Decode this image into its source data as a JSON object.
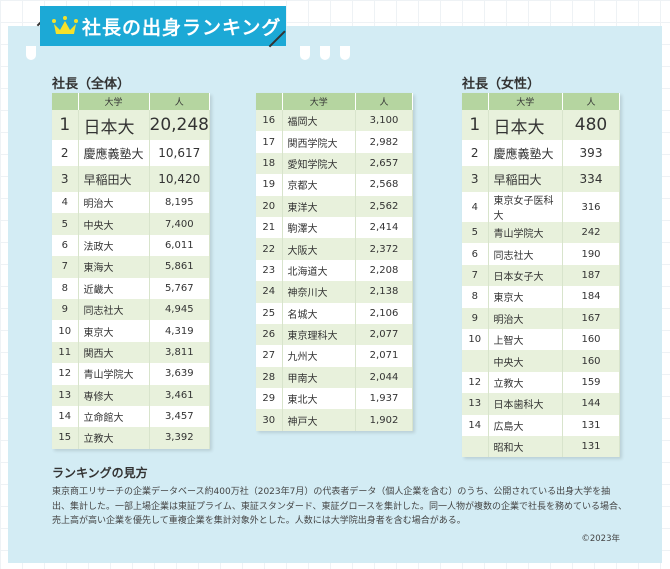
{
  "title": "社長の出身ランキング",
  "icon": "crown-icon",
  "colors": {
    "banner": "#1ca9d6",
    "header": "#b5d5a0",
    "stripe": "#e8f1dc",
    "panel": "#d3ecf4"
  },
  "headers": {
    "univ": "大学",
    "count": "人"
  },
  "overall": {
    "label": "社長（全体）",
    "rows": [
      [
        "1",
        "日本大",
        "20,248"
      ],
      [
        "2",
        "慶應義塾大",
        "10,617"
      ],
      [
        "3",
        "早稲田大",
        "10,420"
      ],
      [
        "4",
        "明治大",
        "8,195"
      ],
      [
        "5",
        "中央大",
        "7,400"
      ],
      [
        "6",
        "法政大",
        "6,011"
      ],
      [
        "7",
        "東海大",
        "5,861"
      ],
      [
        "8",
        "近畿大",
        "5,767"
      ],
      [
        "9",
        "同志社大",
        "4,945"
      ],
      [
        "10",
        "東京大",
        "4,319"
      ],
      [
        "11",
        "関西大",
        "3,811"
      ],
      [
        "12",
        "青山学院大",
        "3,639"
      ],
      [
        "13",
        "専修大",
        "3,461"
      ],
      [
        "14",
        "立命館大",
        "3,457"
      ],
      [
        "15",
        "立教大",
        "3,392"
      ]
    ]
  },
  "overall2": {
    "rows": [
      [
        "16",
        "福岡大",
        "3,100"
      ],
      [
        "17",
        "関西学院大",
        "2,982"
      ],
      [
        "18",
        "愛知学院大",
        "2,657"
      ],
      [
        "19",
        "京都大",
        "2,568"
      ],
      [
        "20",
        "東洋大",
        "2,562"
      ],
      [
        "21",
        "駒澤大",
        "2,414"
      ],
      [
        "22",
        "大阪大",
        "2,372"
      ],
      [
        "23",
        "北海道大",
        "2,208"
      ],
      [
        "24",
        "神奈川大",
        "2,138"
      ],
      [
        "25",
        "名城大",
        "2,106"
      ],
      [
        "26",
        "東京理科大",
        "2,077"
      ],
      [
        "27",
        "九州大",
        "2,071"
      ],
      [
        "28",
        "甲南大",
        "2,044"
      ],
      [
        "29",
        "東北大",
        "1,937"
      ],
      [
        "30",
        "神戸大",
        "1,902"
      ]
    ]
  },
  "female": {
    "label": "社長（女性）",
    "rows": [
      [
        "1",
        "日本大",
        "480"
      ],
      [
        "2",
        "慶應義塾大",
        "393"
      ],
      [
        "3",
        "早稲田大",
        "334"
      ],
      [
        "4",
        "東京女子医科大",
        "316"
      ],
      [
        "5",
        "青山学院大",
        "242"
      ],
      [
        "6",
        "同志社大",
        "190"
      ],
      [
        "7",
        "日本女子大",
        "187"
      ],
      [
        "8",
        "東京大",
        "184"
      ],
      [
        "9",
        "明治大",
        "167"
      ],
      [
        "10",
        "上智大",
        "160"
      ],
      [
        "",
        "中央大",
        "160"
      ],
      [
        "12",
        "立教大",
        "159"
      ],
      [
        "13",
        "日本歯科大",
        "144"
      ],
      [
        "14",
        "広島大",
        "131"
      ],
      [
        "",
        "昭和大",
        "131"
      ]
    ]
  },
  "note": {
    "heading": "ランキングの見方",
    "text": "東京商工リサーチの企業データベース約400万社（2023年7月）の代表者データ（個人企業を含む）のうち、公開されている出身大学を抽出、集計した。一部上場企業は東証プライム、東証スタンダード、東証グロースを集計した。同一人物が複数の企業で社長を務めている場合、売上高が高い企業を優先して重複企業を集計対象外とした。人数には大学院出身者を含む場合がある。",
    "copyright": "©2023年"
  }
}
